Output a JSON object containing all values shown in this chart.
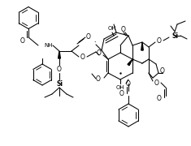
{
  "bg_color": "#ffffff",
  "lw": 0.75,
  "fig_w": 2.35,
  "fig_h": 1.8,
  "dpi": 100,
  "labels": {
    "O": "O",
    "NH": "NH",
    "OH": "OH",
    "Si": "Si",
    "O_ester": "O"
  }
}
